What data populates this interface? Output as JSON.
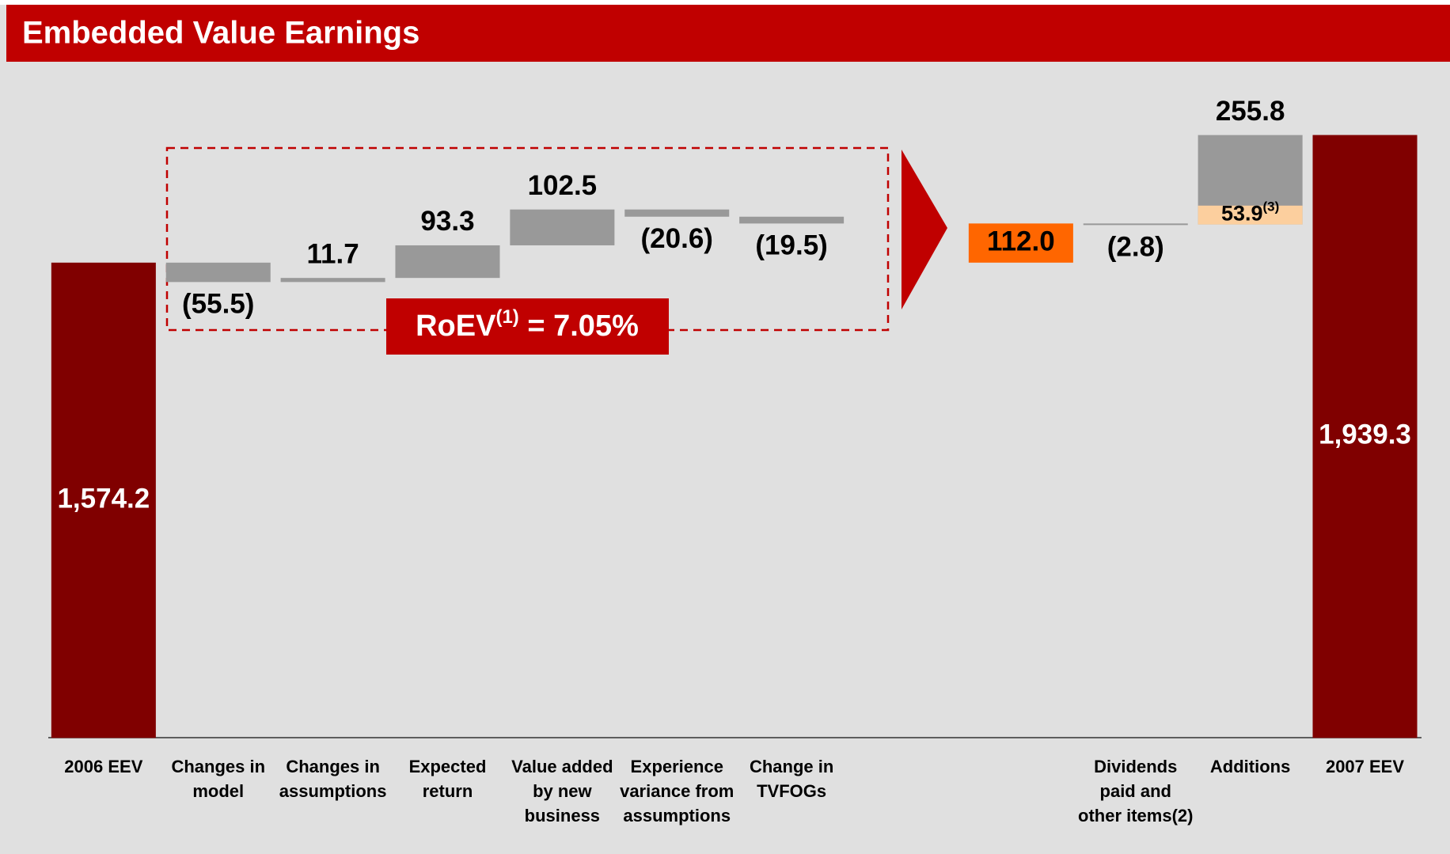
{
  "chart_data": {
    "type": "waterfall",
    "title": "Embedded Value Earnings",
    "categories": [
      "2006 EEV",
      "Changes in model",
      "Changes in assumptions",
      "Expected return",
      "Value added by new business",
      "Experience variance from assumptions",
      "Change in TVFOGs",
      null,
      "Dividends paid and other items(2)",
      "Additions",
      "2007 EEV"
    ],
    "values": [
      1574.2,
      -55.5,
      11.7,
      93.3,
      102.5,
      -20.6,
      -19.5,
      112.0,
      -2.8,
      255.8,
      1939.3
    ],
    "value_labels": [
      "1,574.2",
      "(55.5)",
      "11.7",
      "93.3",
      "102.5",
      "(20.6)",
      "(19.5)",
      "112.0",
      "(2.8)",
      "255.8",
      "1,939.3"
    ],
    "kinds": [
      "total",
      "component",
      "component",
      "component",
      "component",
      "component",
      "component",
      "subtotal",
      "delta",
      "delta",
      "total"
    ],
    "colors": {
      "total": "#800000",
      "component": "#999999",
      "subtotal": "#ff6600",
      "delta": "#999999"
    },
    "additions_breakdown": {
      "value": 53.9,
      "label": "53.9",
      "note": "(3)",
      "color": "#fccf9e"
    },
    "roev": {
      "text": "RoEV",
      "note": "(1)",
      "rest": " = 7.05%"
    }
  }
}
